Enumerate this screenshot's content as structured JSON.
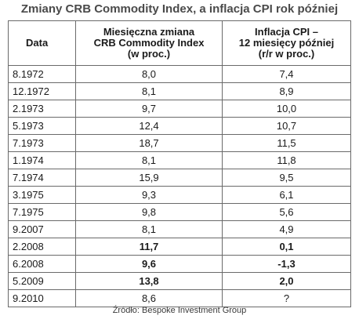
{
  "title": "Zmiany CRB Commodity Index, a inflacja CPI rok później",
  "table": {
    "headers": {
      "date": "Data",
      "crb": [
        "Miesięczna zmiana",
        "CRB Commodity Index",
        "(w proc.)"
      ],
      "cpi": [
        "Inflacja CPI –",
        "12 miesięcy później",
        "(r/r w proc.)"
      ]
    },
    "rows": [
      {
        "date": "8.1972",
        "crb": "8,0",
        "cpi": "7,4",
        "bold": false
      },
      {
        "date": "12.1972",
        "crb": "8,1",
        "cpi": "8,9",
        "bold": false
      },
      {
        "date": "2.1973",
        "crb": "9,7",
        "cpi": "10,0",
        "bold": false
      },
      {
        "date": "5.1973",
        "crb": "12,4",
        "cpi": "10,7",
        "bold": false
      },
      {
        "date": "7.1973",
        "crb": "18,7",
        "cpi": "11,5",
        "bold": false
      },
      {
        "date": "1.1974",
        "crb": "8,1",
        "cpi": "11,8",
        "bold": false
      },
      {
        "date": "7.1974",
        "crb": "15,9",
        "cpi": "9,5",
        "bold": false
      },
      {
        "date": "3.1975",
        "crb": "9,3",
        "cpi": "6,1",
        "bold": false
      },
      {
        "date": "7.1975",
        "crb": "9,8",
        "cpi": "5,6",
        "bold": false
      },
      {
        "date": "9.2007",
        "crb": "8,1",
        "cpi": "4,9",
        "bold": false
      },
      {
        "date": "2.2008",
        "crb": "11,7",
        "cpi": "0,1",
        "bold": true
      },
      {
        "date": "6.2008",
        "crb": "9,6",
        "cpi": "-1,3",
        "bold": true
      },
      {
        "date": "5.2009",
        "crb": "13,8",
        "cpi": "2,0",
        "bold": true
      },
      {
        "date": "9.2010",
        "crb": "8,6",
        "cpi": "?",
        "bold": false
      }
    ]
  },
  "source": "Źródło: Bespoke Investment Group"
}
